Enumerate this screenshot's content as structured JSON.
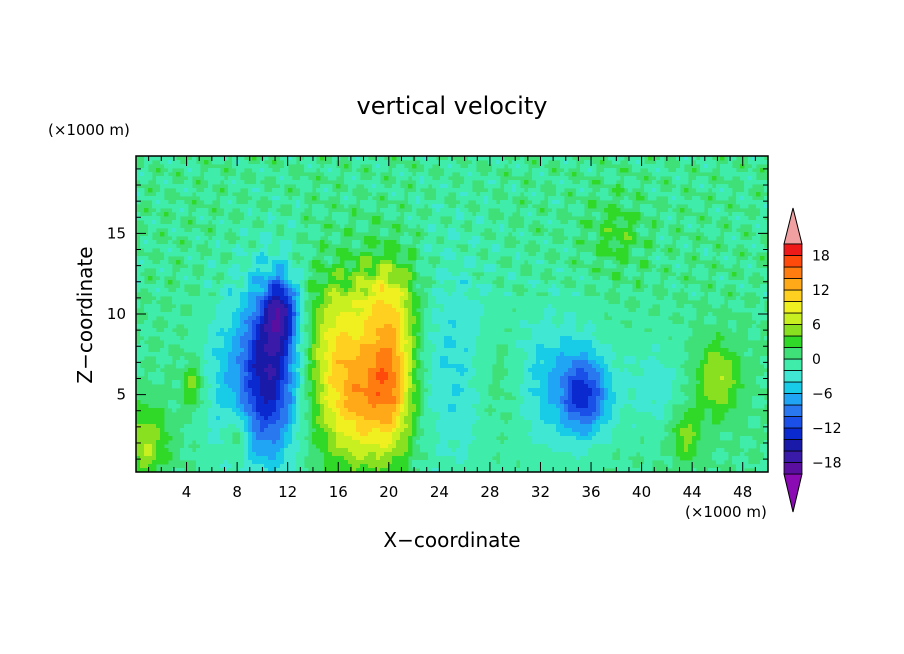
{
  "chart_data": {
    "type": "heatmap",
    "title": "vertical velocity",
    "xlabel": "X−coordinate",
    "ylabel": "Z−coordinate",
    "x_unit": "(×1000 m)",
    "y_unit": "(×1000 m)",
    "xlim": [
      0,
      50
    ],
    "ylim": [
      0.2,
      19.8
    ],
    "xticks": [
      "4",
      "8",
      "12",
      "16",
      "20",
      "24",
      "28",
      "32",
      "36",
      "40",
      "44",
      "48"
    ],
    "yticks": [
      "5",
      "10",
      "15"
    ],
    "colorbar": {
      "labels": [
        "18",
        "12",
        "6",
        "0",
        "−6",
        "−12",
        "−18"
      ],
      "label_values": [
        18,
        12,
        6,
        0,
        -6,
        -12,
        -18
      ],
      "levels": [
        -20,
        -18,
        -16,
        -14,
        -12,
        -10,
        -8,
        -6,
        -4,
        -2,
        0,
        2,
        4,
        6,
        8,
        10,
        12,
        14,
        16,
        18,
        20
      ],
      "colors": [
        "#5a0fa0",
        "#3a1aa8",
        "#1a1aa8",
        "#0a2ad0",
        "#1a50e8",
        "#2a78f0",
        "#20a4f4",
        "#18cce8",
        "#40e8d4",
        "#40ecaa",
        "#40e078",
        "#30d828",
        "#88e020",
        "#c8f020",
        "#f0f020",
        "#ffd020",
        "#ffa818",
        "#ff7c10",
        "#ff4a0c",
        "#ee1a1a"
      ],
      "over_color": "#f0a0a0",
      "under_color": "#8a0ab4"
    },
    "features": [
      {
        "x": 10.5,
        "z": 6.5,
        "sx": 1.6,
        "sz": 3.8,
        "value": -16
      },
      {
        "x": 11.5,
        "z": 10.2,
        "sx": 0.9,
        "sz": 1.4,
        "value": -10
      },
      {
        "x": 17.5,
        "z": 5.0,
        "sx": 2.2,
        "sz": 3.0,
        "value": 12
      },
      {
        "x": 20.3,
        "z": 6.2,
        "sx": 1.3,
        "sz": 3.2,
        "value": 10
      },
      {
        "x": 19.5,
        "z": 11.0,
        "sx": 2.0,
        "sz": 2.0,
        "value": 6
      },
      {
        "x": 15.5,
        "z": 9.0,
        "sx": 1.5,
        "sz": 2.5,
        "value": 5
      },
      {
        "x": 35.5,
        "z": 5.0,
        "sx": 1.4,
        "sz": 1.8,
        "value": -11
      },
      {
        "x": 32.0,
        "z": 6.0,
        "sx": 2.8,
        "sz": 3.0,
        "value": -5
      },
      {
        "x": 7.0,
        "z": 6.0,
        "sx": 1.4,
        "sz": 3.5,
        "value": -4
      },
      {
        "x": 25.0,
        "z": 7.0,
        "sx": 2.2,
        "sz": 5.0,
        "value": -4
      },
      {
        "x": 29.0,
        "z": 6.0,
        "sx": 1.6,
        "sz": 2.5,
        "value": 4
      },
      {
        "x": 46.0,
        "z": 6.0,
        "sx": 1.3,
        "sz": 1.6,
        "value": 6
      },
      {
        "x": 0.8,
        "z": 2.0,
        "sx": 1.2,
        "sz": 1.5,
        "value": 6
      },
      {
        "x": 43.5,
        "z": 2.5,
        "sx": 0.8,
        "sz": 1.2,
        "value": 5
      },
      {
        "x": 41.0,
        "z": 5.5,
        "sx": 1.8,
        "sz": 2.0,
        "value": -3
      },
      {
        "x": 38.0,
        "z": 15.0,
        "sx": 1.4,
        "sz": 1.5,
        "value": 3
      },
      {
        "x": 4.5,
        "z": 5.5,
        "sx": 0.6,
        "sz": 1.0,
        "value": 5
      },
      {
        "x": 8.0,
        "z": 2.5,
        "sx": 0.6,
        "sz": 1.0,
        "value": 5
      }
    ]
  }
}
